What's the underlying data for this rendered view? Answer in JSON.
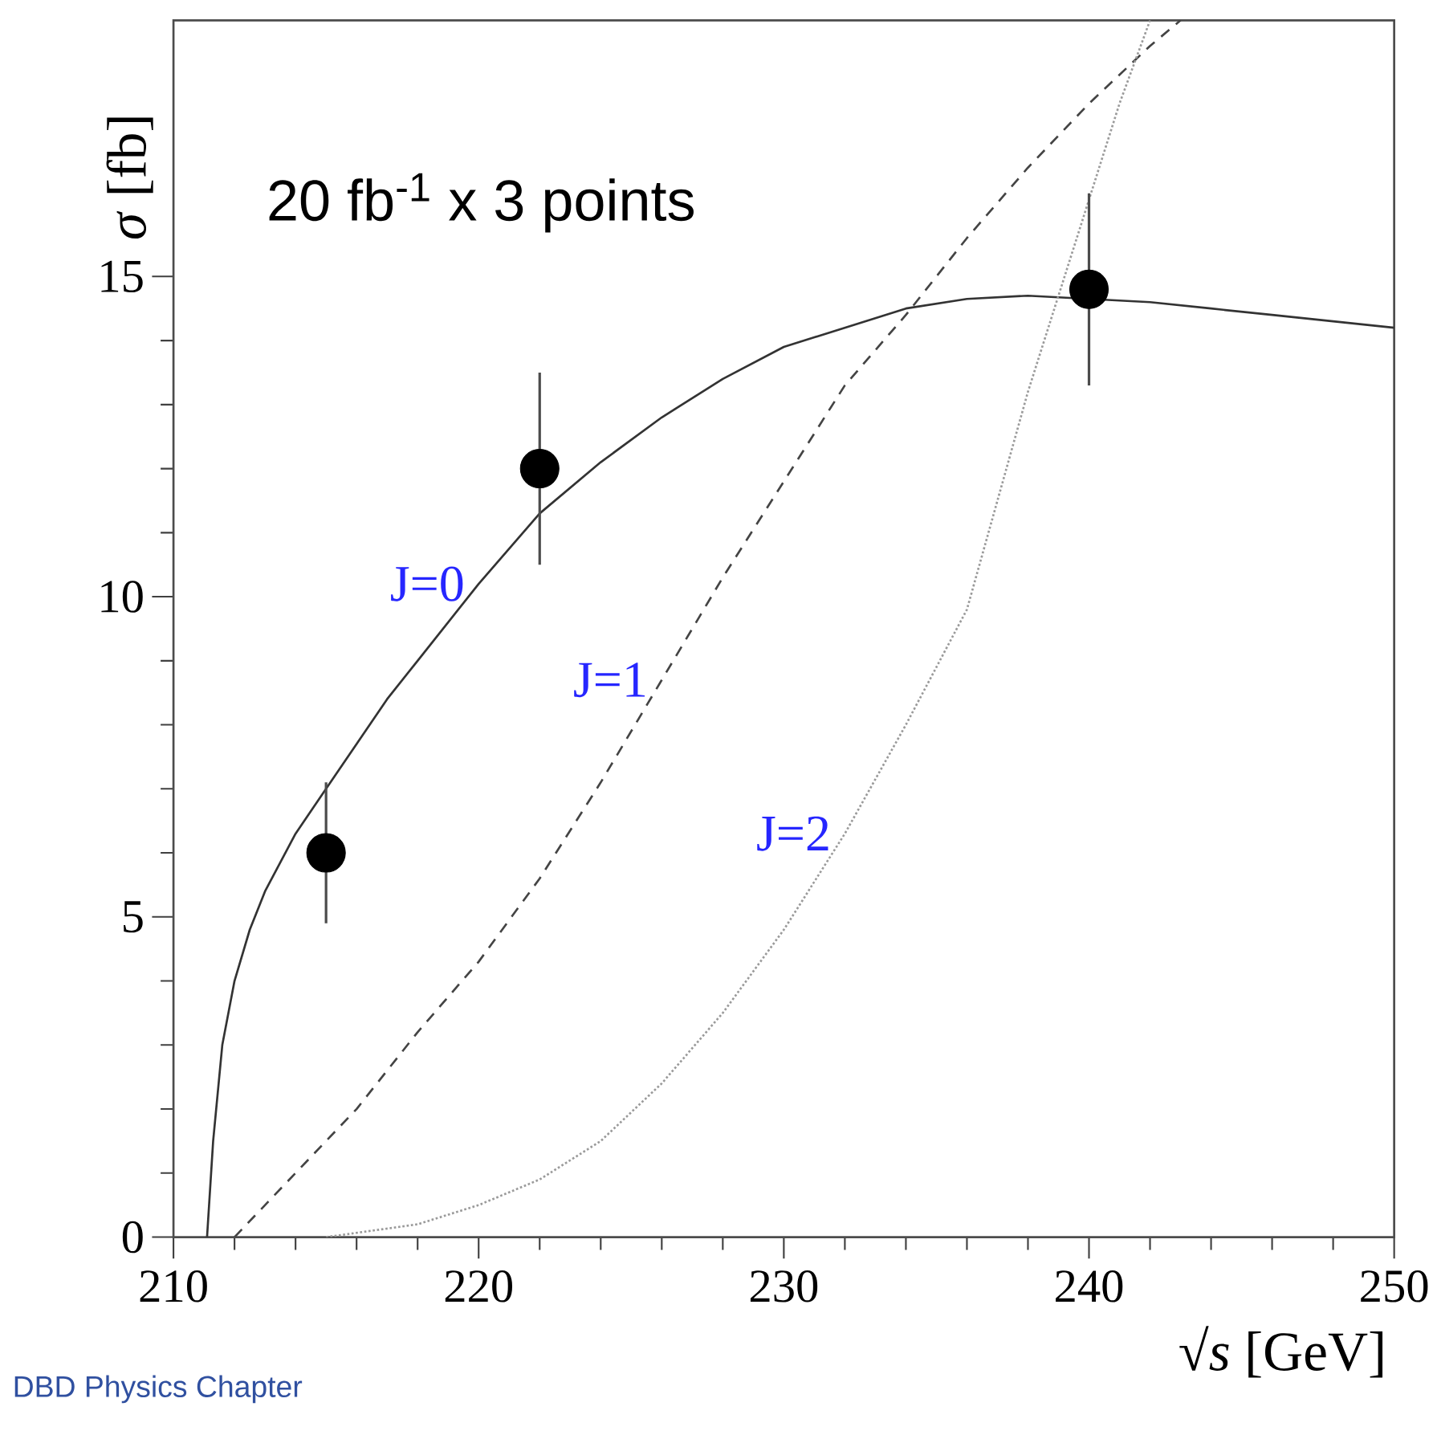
{
  "chart_data": {
    "type": "line",
    "xlabel": "√*s* [GeV]",
    "ylabel": "*σ* [fb]",
    "xlim": [
      210,
      250
    ],
    "ylim": [
      0,
      19
    ],
    "xticks": [
      210,
      220,
      230,
      240,
      250
    ],
    "yticks": [
      0,
      5,
      10,
      15
    ],
    "series": [
      {
        "name": "J=0",
        "color": "#333333",
        "line_style": "solid",
        "x": [
          211.1,
          211.3,
          211.6,
          212,
          212.5,
          213,
          214,
          215,
          216,
          217,
          218,
          220,
          222,
          224,
          226,
          228,
          230,
          232,
          234,
          236,
          238,
          240,
          242,
          244,
          246,
          248,
          250
        ],
        "values": [
          0,
          1.5,
          3.0,
          4.0,
          4.8,
          5.4,
          6.3,
          7.0,
          7.7,
          8.4,
          9.0,
          10.2,
          11.3,
          12.1,
          12.8,
          13.4,
          13.9,
          14.2,
          14.5,
          14.65,
          14.7,
          14.65,
          14.6,
          14.5,
          14.4,
          14.3,
          14.2
        ]
      },
      {
        "name": "J=1",
        "color": "#444444",
        "line_style": "dashed",
        "x": [
          212,
          214,
          216,
          218,
          220,
          222,
          224,
          226,
          228,
          230,
          232,
          234,
          236,
          238,
          240,
          242,
          243
        ],
        "values": [
          0,
          1.0,
          2.0,
          3.2,
          4.3,
          5.6,
          7.1,
          8.7,
          10.3,
          11.8,
          13.3,
          14.4,
          15.6,
          16.7,
          17.7,
          18.6,
          19
        ]
      },
      {
        "name": "J=2",
        "color": "#9a9a9a",
        "line_style": "dotted",
        "x": [
          215,
          218,
          220,
          222,
          224,
          226,
          228,
          230,
          232,
          234,
          236,
          238,
          239,
          240,
          241,
          242
        ],
        "values": [
          0,
          0.2,
          0.5,
          0.9,
          1.5,
          2.4,
          3.5,
          4.8,
          6.3,
          8.0,
          9.8,
          13.2,
          14.7,
          16.2,
          17.7,
          19
        ]
      },
      {
        "type": "scatter",
        "color": "#000000",
        "marker": "circle",
        "x": [
          215,
          222,
          240
        ],
        "values": [
          6.0,
          12.0,
          14.8
        ],
        "errors": [
          1.1,
          1.5,
          1.5
        ]
      }
    ],
    "annotations": [
      "20 fb$^{-1}$ x 3 points",
      "DBD Physics Chapter"
    ]
  }
}
